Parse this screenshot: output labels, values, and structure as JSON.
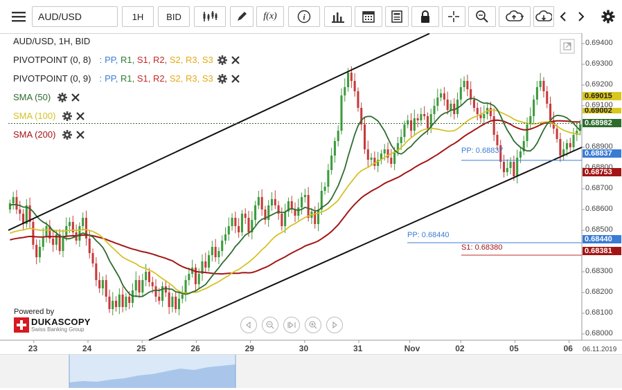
{
  "toolbar": {
    "menu_icon": "hamburger-menu-icon",
    "symbol": "AUD/USD",
    "interval": "1H",
    "side": "BID",
    "fx_label": "f(x)",
    "info_label": "i"
  },
  "legend": {
    "title": "AUD/USD, 1H, BID",
    "pivot1": {
      "name": "PIVOTPOINT (0, 8)",
      "sep": ":",
      "pp": "PP,",
      "r1": "R1,",
      "s1": "S1,",
      "r2": "R2,",
      "s2": "S2,",
      "r3": "R3,",
      "s3": "S3"
    },
    "pivot2": {
      "name": "PIVOTPOINT (0, 9)",
      "sep": ":",
      "pp": "PP,",
      "r1": "R1,",
      "s1": "S1,",
      "r2": "R2,",
      "s2": "S2,",
      "r3": "R3,",
      "s3": "S3"
    },
    "sma50": "SMA (50)",
    "sma100": "SMA (100)",
    "sma200": "SMA (200)"
  },
  "colors": {
    "pp": "#3a7bd5",
    "r1": "#2e7d32",
    "s1": "#c62828",
    "r2": "#c62828",
    "s2": "#e6a817",
    "r3": "#e6a817",
    "s3": "#e6a817",
    "sma50": "#2e6b2e",
    "sma100": "#d4c227",
    "sma200": "#a31515",
    "bull": "#3c9b3c",
    "bear": "#c73a3a",
    "trend": "#111111"
  },
  "branding": {
    "powered": "Powered by",
    "name": "DUKASCOPY",
    "tagline": "Swiss Banking Group"
  },
  "chart_data": {
    "type": "candlestick",
    "title": "AUD/USD, 1H, BID",
    "x_labels": [
      "23",
      "24",
      "25",
      "26",
      "29",
      "30",
      "31",
      "Nov",
      "02",
      "05",
      "06"
    ],
    "date_label": "06.11.2019",
    "y_ticks": [
      "0.69400",
      "0.69300",
      "0.69200",
      "0.69100",
      "0.68900",
      "0.68800",
      "0.68700",
      "0.68600",
      "0.68500",
      "0.68300",
      "0.68200",
      "0.68100",
      "0.68000"
    ],
    "ylim": [
      0.6797,
      0.6945
    ],
    "price_labels": {
      "last": "0.69015",
      "sma50": "0.68982",
      "sma100_hidden": "0.69002",
      "pp_near": "0.68837",
      "sma200": "0.68753",
      "pp_far": "0.68440",
      "s1_far": "0.68381"
    },
    "pivot_lines": [
      {
        "label": "PP: 0.68837",
        "value": 0.68837
      },
      {
        "label": "PP: 0.68440",
        "value": 0.6844
      },
      {
        "label": "S1: 0.68380",
        "value": 0.6838
      }
    ],
    "current_price": 0.69015,
    "closes": [
      0.6863,
      0.6866,
      0.686,
      0.6858,
      0.6853,
      0.6862,
      0.6854,
      0.6843,
      0.6837,
      0.6842,
      0.6847,
      0.6852,
      0.6846,
      0.6843,
      0.6848,
      0.684,
      0.6847,
      0.6852,
      0.6854,
      0.6849,
      0.6845,
      0.6852,
      0.6856,
      0.6846,
      0.6839,
      0.6834,
      0.6826,
      0.6822,
      0.6826,
      0.6818,
      0.6812,
      0.6816,
      0.6813,
      0.6819,
      0.6813,
      0.6818,
      0.6815,
      0.6821,
      0.6826,
      0.682,
      0.6826,
      0.683,
      0.6825,
      0.6823,
      0.6818,
      0.6816,
      0.6823,
      0.682,
      0.6813,
      0.6818,
      0.6812,
      0.6817,
      0.6819,
      0.6826,
      0.6829,
      0.6832,
      0.6824,
      0.6829,
      0.6835,
      0.6832,
      0.6838,
      0.6842,
      0.6837,
      0.684,
      0.6845,
      0.6848,
      0.6852,
      0.6856,
      0.6852,
      0.6849,
      0.6858,
      0.6856,
      0.6849,
      0.6855,
      0.6862,
      0.6866,
      0.686,
      0.6855,
      0.6862,
      0.6865,
      0.6862,
      0.6858,
      0.6852,
      0.6859,
      0.6864,
      0.686,
      0.6857,
      0.6861,
      0.6866,
      0.6867,
      0.6856,
      0.6859,
      0.6853,
      0.686,
      0.6869,
      0.6871,
      0.6879,
      0.6886,
      0.6893,
      0.6898,
      0.6915,
      0.6919,
      0.6926,
      0.6922,
      0.6917,
      0.6909,
      0.6901,
      0.6889,
      0.6884,
      0.6885,
      0.6881,
      0.6884,
      0.6887,
      0.6889,
      0.6885,
      0.6882,
      0.6888,
      0.6892,
      0.6895,
      0.6901,
      0.6903,
      0.6898,
      0.6904,
      0.6903,
      0.6906,
      0.6905,
      0.6899,
      0.6906,
      0.691,
      0.6914,
      0.6916,
      0.6913,
      0.6908,
      0.6911,
      0.6906,
      0.6913,
      0.6919,
      0.6922,
      0.6918,
      0.6913,
      0.6909,
      0.6906,
      0.6904,
      0.6906,
      0.6909,
      0.6905,
      0.6896,
      0.6891,
      0.6883,
      0.6878,
      0.688,
      0.6883,
      0.6876,
      0.6885,
      0.6888,
      0.6893,
      0.6901,
      0.6905,
      0.6913,
      0.6919,
      0.6922,
      0.6917,
      0.6911,
      0.6903,
      0.6899,
      0.6894,
      0.6886,
      0.6889,
      0.6892,
      0.689,
      0.6896,
      0.6898,
      0.6901
    ]
  }
}
